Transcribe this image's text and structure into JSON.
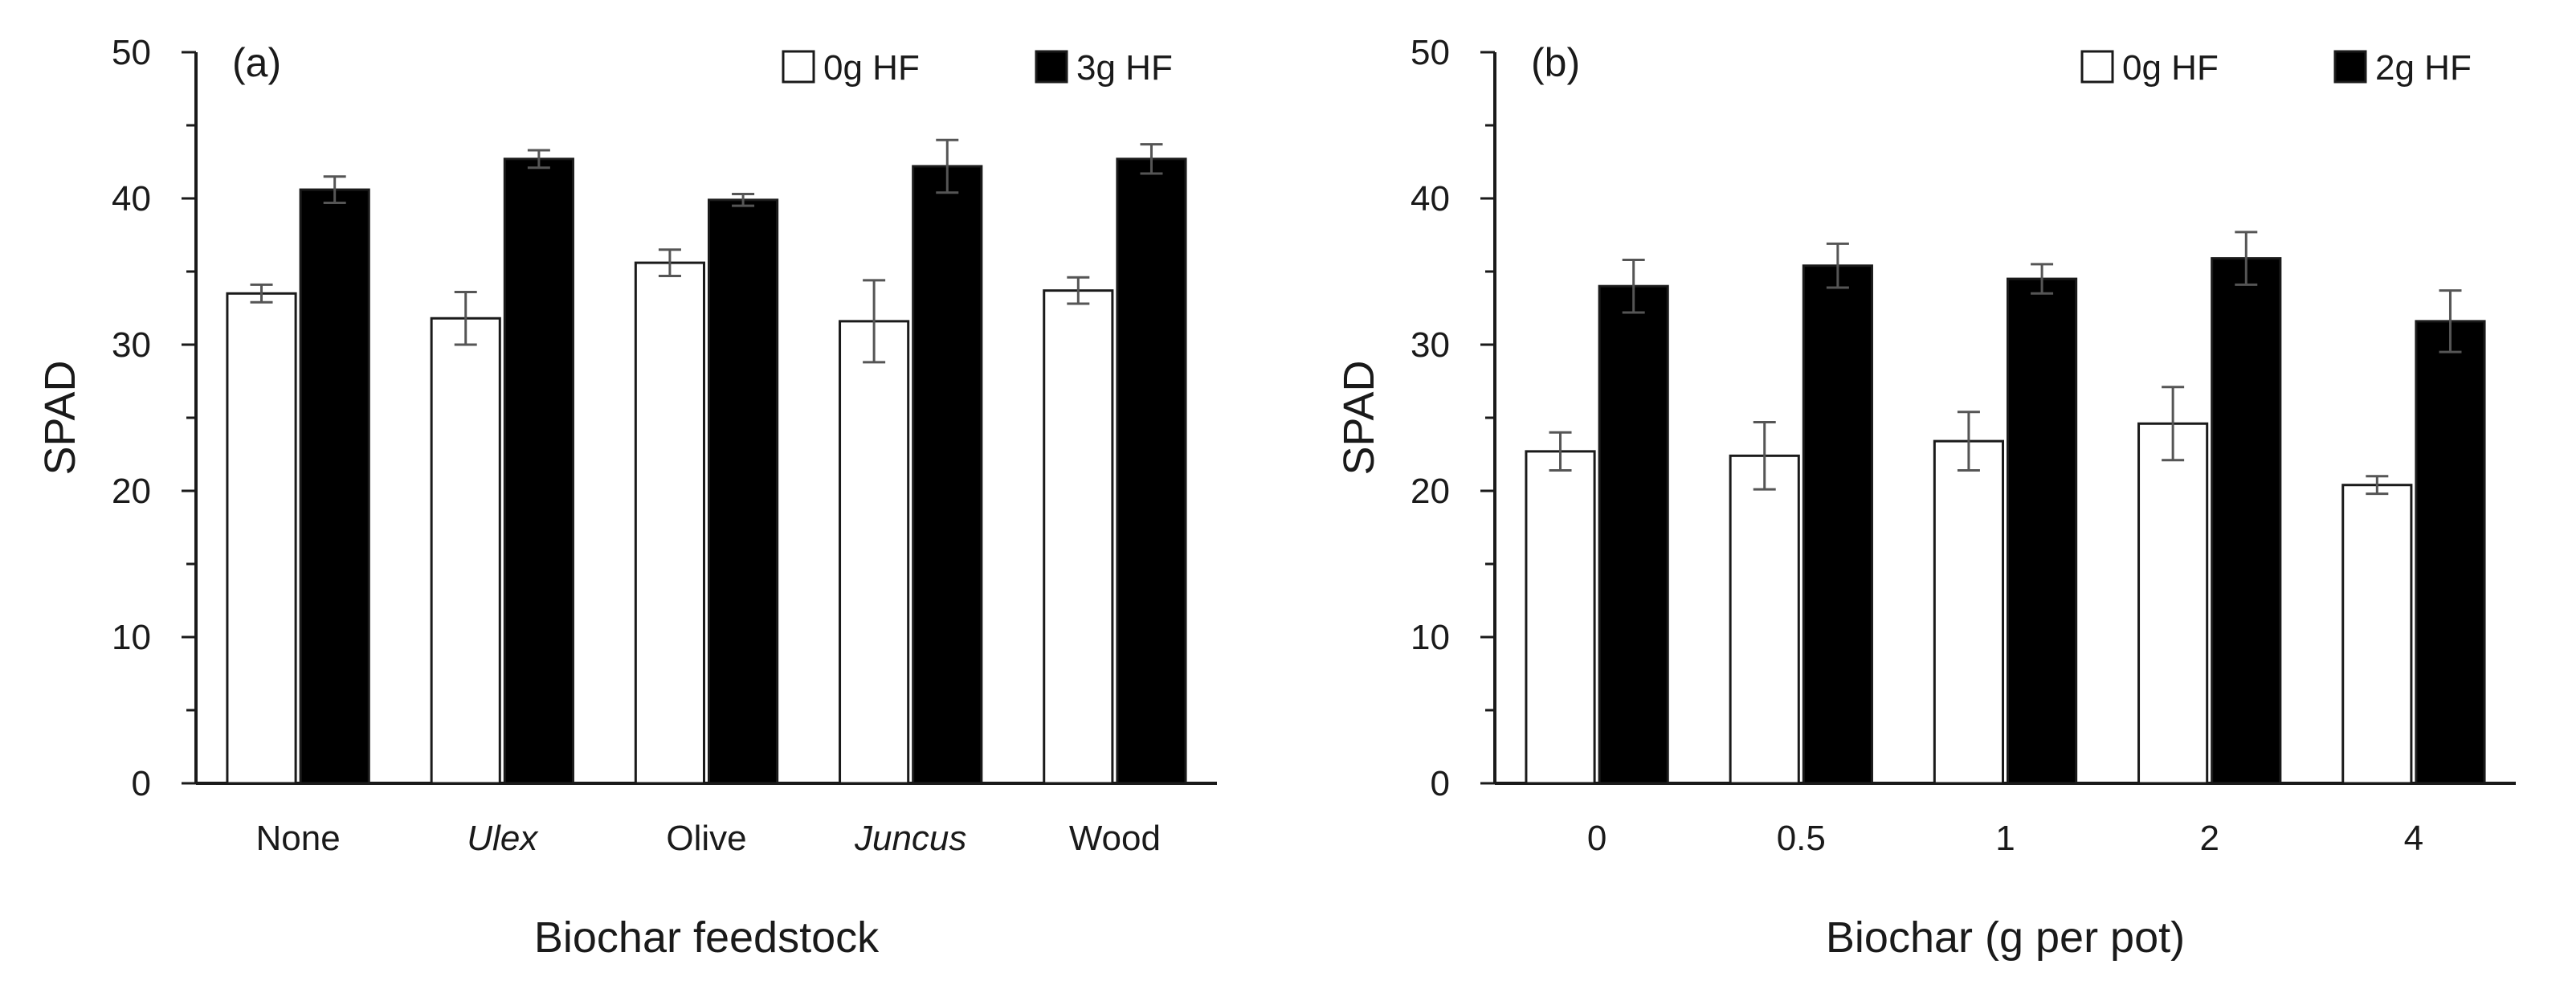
{
  "chart_data": [
    {
      "type": "bar",
      "panel_label": "(a)",
      "xlabel": "Biochar feedstock",
      "ylabel": "SPAD",
      "ylim": [
        0,
        50
      ],
      "yticks": [
        "0",
        "10",
        "20",
        "30",
        "40",
        "50"
      ],
      "categories": [
        "None",
        "Ulex",
        "Olive",
        "Juncus",
        "Wood"
      ],
      "italic_categories": [
        "Ulex",
        "Juncus"
      ],
      "legend_position": "top-right",
      "series": [
        {
          "name": "0g HF",
          "color": "#ffffff",
          "values": [
            33.5,
            31.8,
            35.6,
            31.6,
            33.7
          ],
          "errors": [
            0.6,
            1.8,
            0.9,
            2.8,
            0.9
          ]
        },
        {
          "name": "3g HF",
          "color": "#000000",
          "values": [
            40.6,
            42.7,
            39.9,
            42.2,
            42.7
          ],
          "errors": [
            0.9,
            0.6,
            0.4,
            1.8,
            1.0
          ]
        }
      ]
    },
    {
      "type": "bar",
      "panel_label": "(b)",
      "xlabel": "Biochar (g per pot)",
      "ylabel": "SPAD",
      "ylim": [
        0,
        50
      ],
      "yticks": [
        "0",
        "10",
        "20",
        "30",
        "40",
        "50"
      ],
      "categories": [
        "0",
        "0.5",
        "1",
        "2",
        "4"
      ],
      "italic_categories": [],
      "legend_position": "top-right",
      "series": [
        {
          "name": "0g HF",
          "color": "#ffffff",
          "values": [
            22.7,
            22.4,
            23.4,
            24.6,
            20.4
          ],
          "errors": [
            1.3,
            2.3,
            2.0,
            2.5,
            0.6
          ]
        },
        {
          "name": "2g HF",
          "color": "#000000",
          "values": [
            34.0,
            35.4,
            34.5,
            35.9,
            31.6
          ],
          "errors": [
            1.8,
            1.5,
            1.0,
            1.8,
            2.1
          ]
        }
      ]
    }
  ]
}
